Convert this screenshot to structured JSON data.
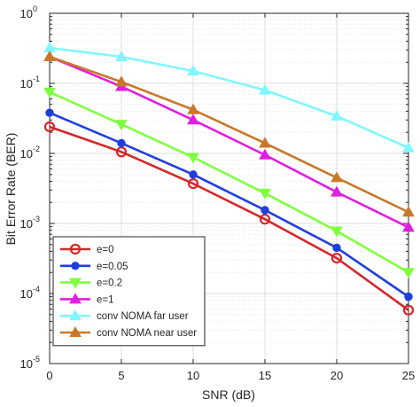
{
  "chart_data": {
    "type": "line",
    "xlabel": "SNR (dB)",
    "ylabel": "Bit Error Rate (BER)",
    "xlim": [
      0,
      25
    ],
    "ylim": [
      1e-05,
      1
    ],
    "yscale": "log",
    "grid": true,
    "x_ticks": [
      0,
      5,
      10,
      15,
      20,
      25
    ],
    "y_ticks": [
      {
        "value": 1e-05,
        "base": "10",
        "exp": "-5"
      },
      {
        "value": 0.0001,
        "base": "10",
        "exp": "-4"
      },
      {
        "value": 0.001,
        "base": "10",
        "exp": "-3"
      },
      {
        "value": 0.01,
        "base": "10",
        "exp": "-2"
      },
      {
        "value": 0.1,
        "base": "10",
        "exp": "-1"
      },
      {
        "value": 1,
        "base": "10",
        "exp": "0"
      }
    ],
    "x": [
      0,
      5,
      10,
      15,
      20,
      25
    ],
    "legend_position": "bottom-left",
    "series": [
      {
        "name": "e=0",
        "color": "#d62728",
        "marker": "circle-open",
        "values": [
          0.024,
          0.0105,
          0.0037,
          0.00115,
          0.00032,
          5.8e-05
        ]
      },
      {
        "name": "e=0.05",
        "color": "#1f3fdd",
        "marker": "circle-filled",
        "values": [
          0.038,
          0.014,
          0.005,
          0.00155,
          0.00045,
          9e-05
        ]
      },
      {
        "name": "e=0.2",
        "color": "#7fff3f",
        "marker": "triangle-down",
        "values": [
          0.075,
          0.026,
          0.0088,
          0.0027,
          0.00078,
          0.0002
        ]
      },
      {
        "name": "e=1",
        "color": "#e01ee0",
        "marker": "triangle-up",
        "values": [
          0.24,
          0.09,
          0.03,
          0.0095,
          0.0028,
          0.00088
        ]
      },
      {
        "name": "conv NOMA far user",
        "color": "#7ff7ff",
        "marker": "triangle-up",
        "values": [
          0.32,
          0.24,
          0.15,
          0.08,
          0.034,
          0.012
        ]
      },
      {
        "name": "conv NOMA near user",
        "color": "#c8782a",
        "marker": "triangle-up",
        "values": [
          0.24,
          0.105,
          0.042,
          0.014,
          0.0045,
          0.00145
        ]
      }
    ]
  }
}
